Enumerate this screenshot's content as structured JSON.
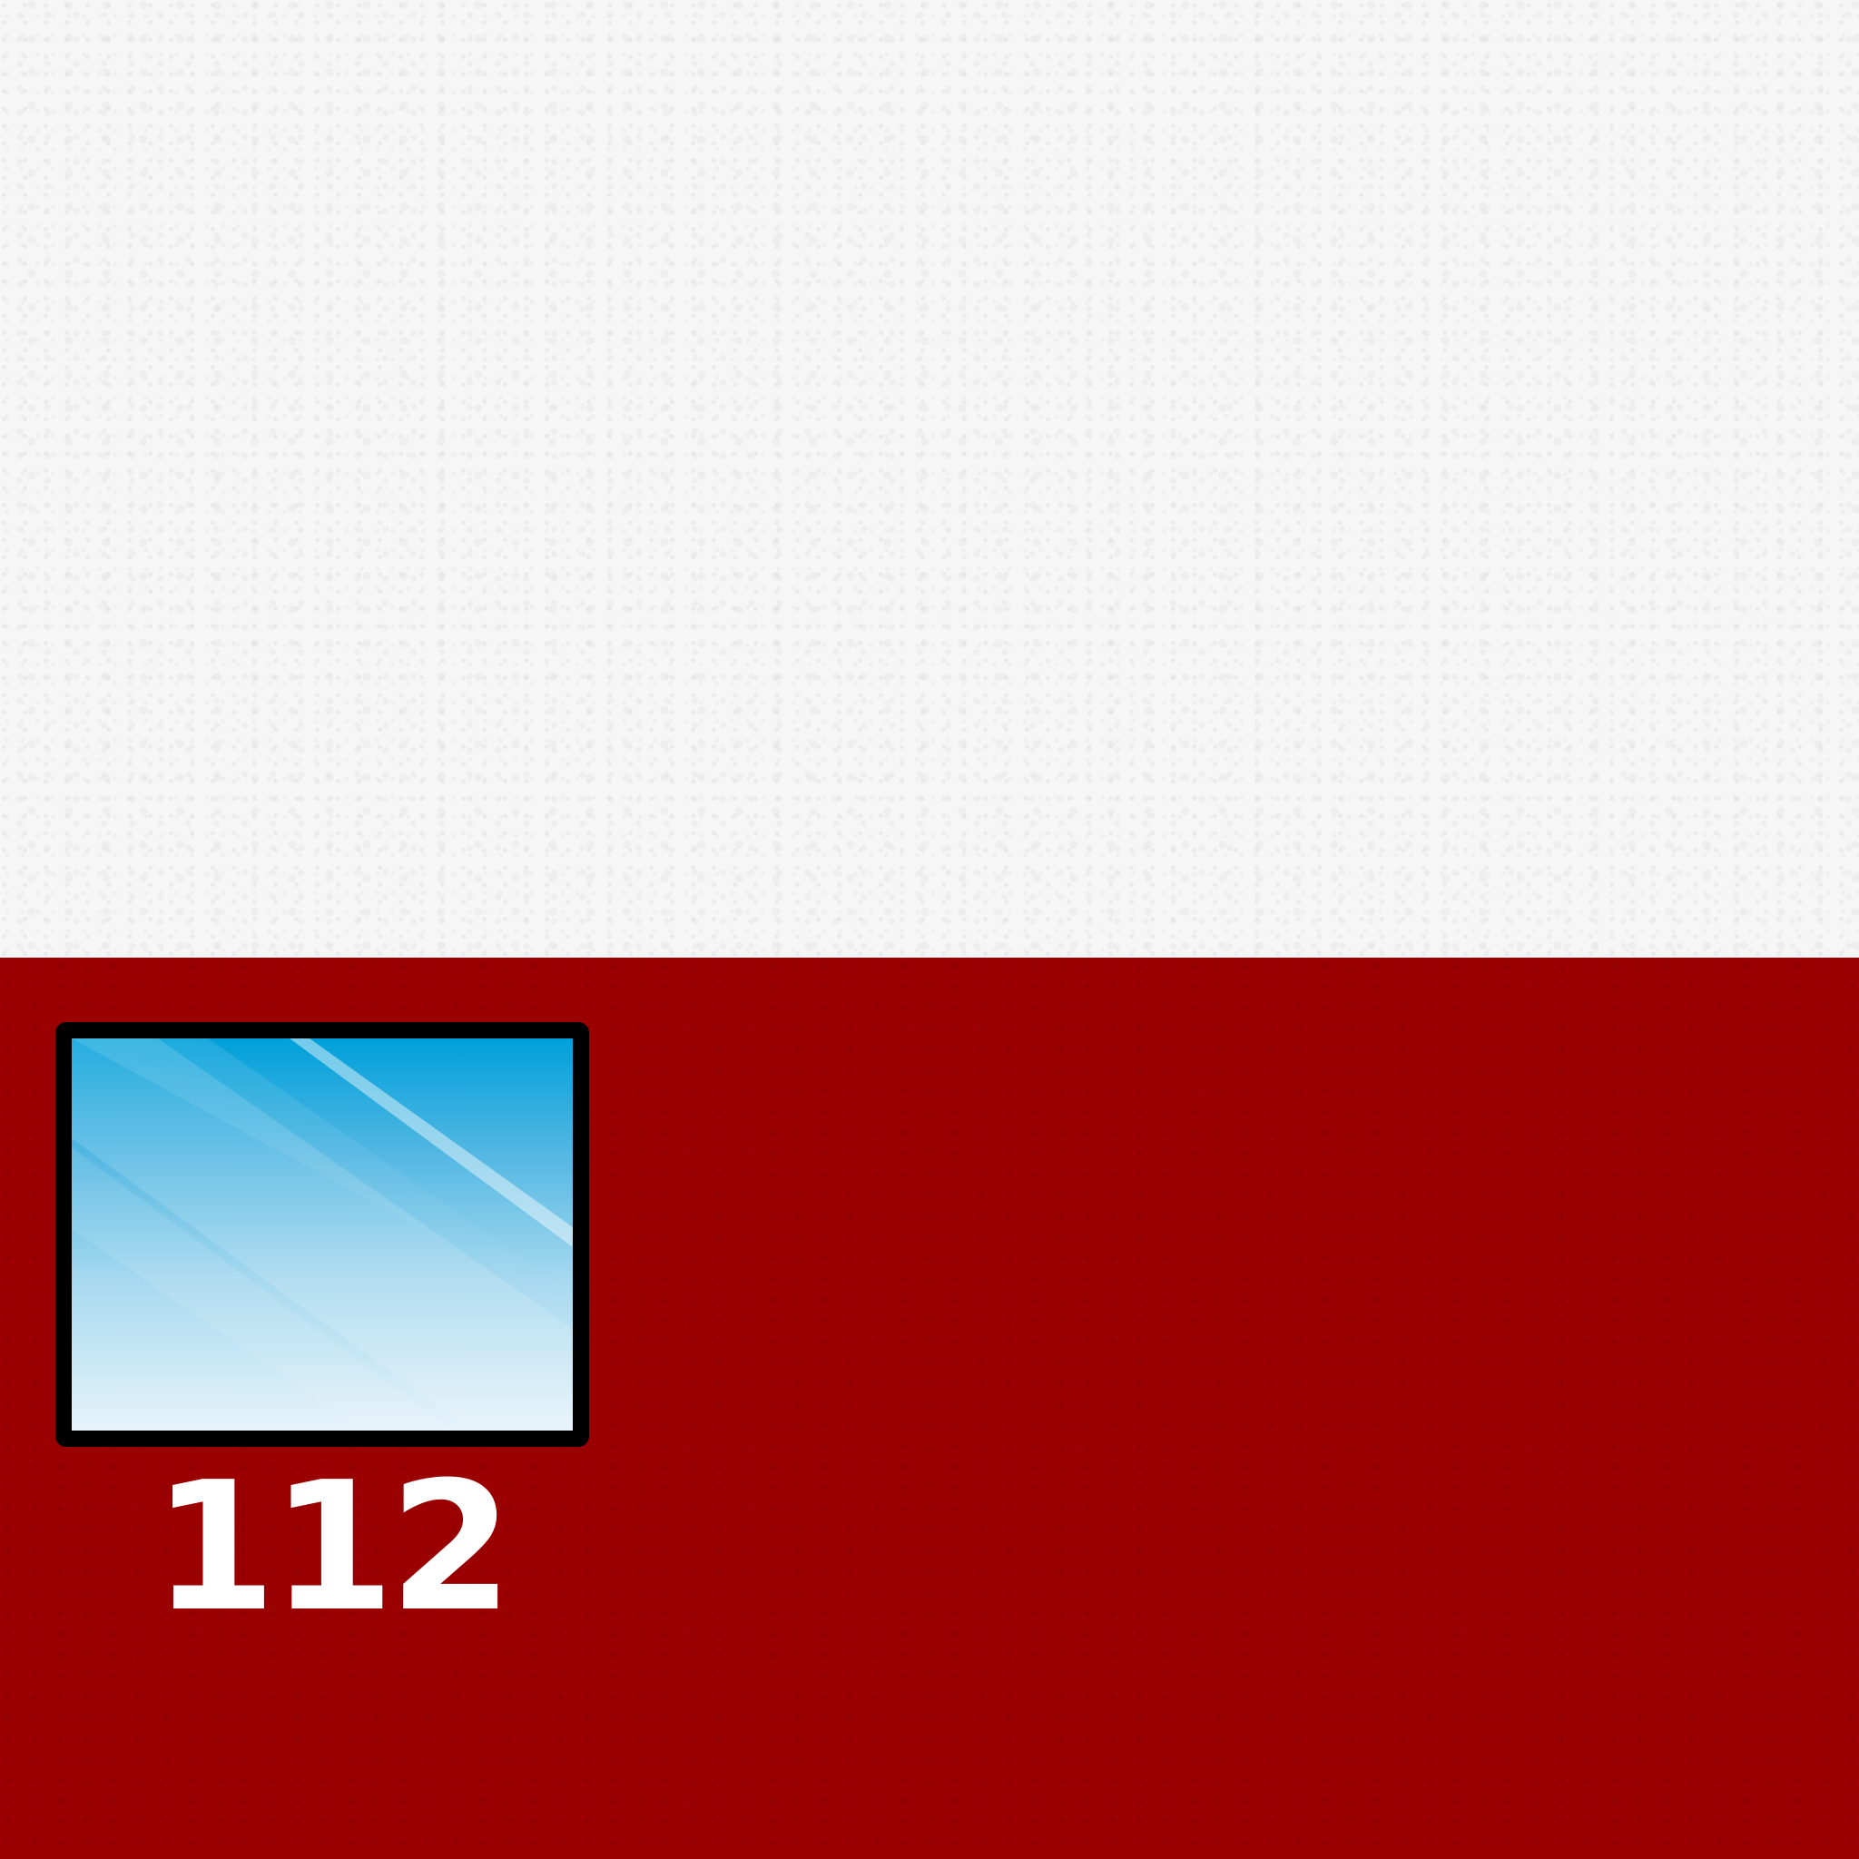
{
  "colors": {
    "top_band": "#f6f6f6",
    "bottom_band": "#9a0000",
    "screen_border": "#000000",
    "screen_top": "#00a0da",
    "screen_bottom": "#e6f3fa",
    "number_text": "#ffffff"
  },
  "screen": {
    "icon": "screen-icon"
  },
  "number": {
    "value": "112"
  }
}
